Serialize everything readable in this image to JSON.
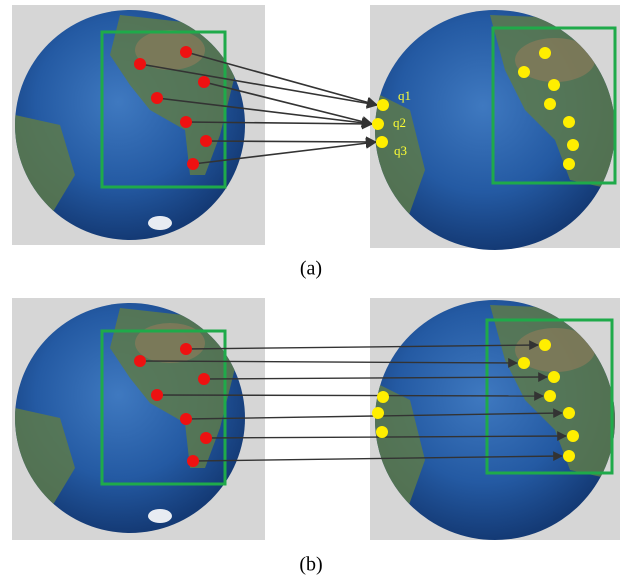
{
  "figure": {
    "panels": [
      {
        "caption": "(a)",
        "query_labels": [
          "q1",
          "q2",
          "q3"
        ]
      },
      {
        "caption": "(b)"
      }
    ]
  }
}
